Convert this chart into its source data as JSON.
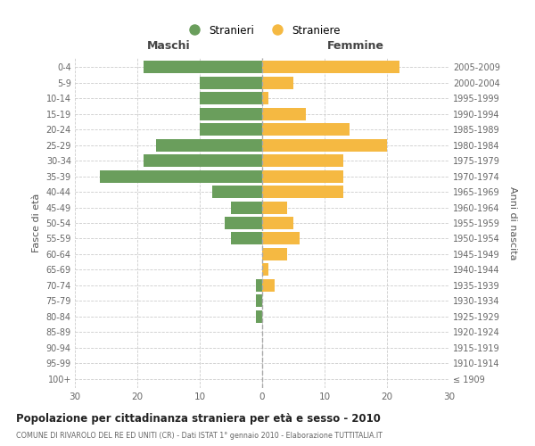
{
  "age_groups": [
    "100+",
    "95-99",
    "90-94",
    "85-89",
    "80-84",
    "75-79",
    "70-74",
    "65-69",
    "60-64",
    "55-59",
    "50-54",
    "45-49",
    "40-44",
    "35-39",
    "30-34",
    "25-29",
    "20-24",
    "15-19",
    "10-14",
    "5-9",
    "0-4"
  ],
  "birth_years": [
    "≤ 1909",
    "1910-1914",
    "1915-1919",
    "1920-1924",
    "1925-1929",
    "1930-1934",
    "1935-1939",
    "1940-1944",
    "1945-1949",
    "1950-1954",
    "1955-1959",
    "1960-1964",
    "1965-1969",
    "1970-1974",
    "1975-1979",
    "1980-1984",
    "1985-1989",
    "1990-1994",
    "1995-1999",
    "2000-2004",
    "2005-2009"
  ],
  "males": [
    0,
    0,
    0,
    0,
    1,
    1,
    1,
    0,
    0,
    5,
    6,
    5,
    8,
    26,
    19,
    17,
    10,
    10,
    10,
    10,
    19
  ],
  "females": [
    0,
    0,
    0,
    0,
    0,
    0,
    2,
    1,
    4,
    6,
    5,
    4,
    13,
    13,
    13,
    20,
    14,
    7,
    1,
    5,
    22
  ],
  "male_color": "#6a9e5c",
  "female_color": "#f5b942",
  "background_color": "#ffffff",
  "grid_color": "#cccccc",
  "title": "Popolazione per cittadinanza straniera per età e sesso - 2010",
  "subtitle": "COMUNE DI RIVAROLO DEL RE ED UNITI (CR) - Dati ISTAT 1° gennaio 2010 - Elaborazione TUTTITALIA.IT",
  "xlabel_left": "Maschi",
  "xlabel_right": "Femmine",
  "ylabel_left": "Fasce di età",
  "ylabel_right": "Anni di nascita",
  "legend_male": "Stranieri",
  "legend_female": "Straniere",
  "xlim": 30,
  "bar_height": 0.8
}
